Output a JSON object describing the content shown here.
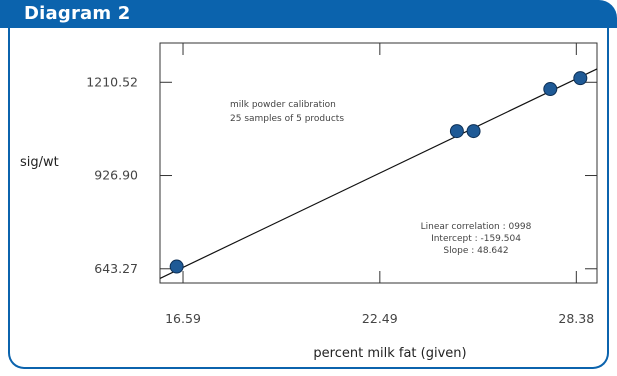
{
  "header": {
    "title": "Diagram 2"
  },
  "chart_data": {
    "type": "scatter",
    "title": "",
    "xlabel": "percent milk fat (given)",
    "ylabel": "sig/wt",
    "xlim": [
      15.9,
      29.0
    ],
    "ylim": [
      600,
      1330
    ],
    "x_ticks": [
      {
        "value": 16.59,
        "label": "16.59"
      },
      {
        "value": 22.49,
        "label": "22.49"
      },
      {
        "value": 28.38,
        "label": "28.38"
      }
    ],
    "y_ticks": [
      {
        "value": 643.27,
        "label": "643.27"
      },
      {
        "value": 926.9,
        "label": "926.90"
      },
      {
        "value": 1210.52,
        "label": "1210.52"
      }
    ],
    "points": [
      {
        "x": 16.4,
        "y": 650
      },
      {
        "x": 24.8,
        "y": 1062
      },
      {
        "x": 25.3,
        "y": 1062
      },
      {
        "x": 27.6,
        "y": 1190
      },
      {
        "x": 28.5,
        "y": 1223
      }
    ],
    "fit_line": {
      "intercept": -159.504,
      "slope": 48.642
    },
    "annotations": {
      "top": [
        "milk powder calibration",
        "25 samples of 5 products"
      ],
      "stats": [
        "Linear correlation : 0998",
        "Intercept : -159.504",
        "Slope : 48.642"
      ]
    },
    "colors": {
      "accent": "#0b63ad",
      "point": "#1f5a96",
      "line": "#111111"
    }
  }
}
